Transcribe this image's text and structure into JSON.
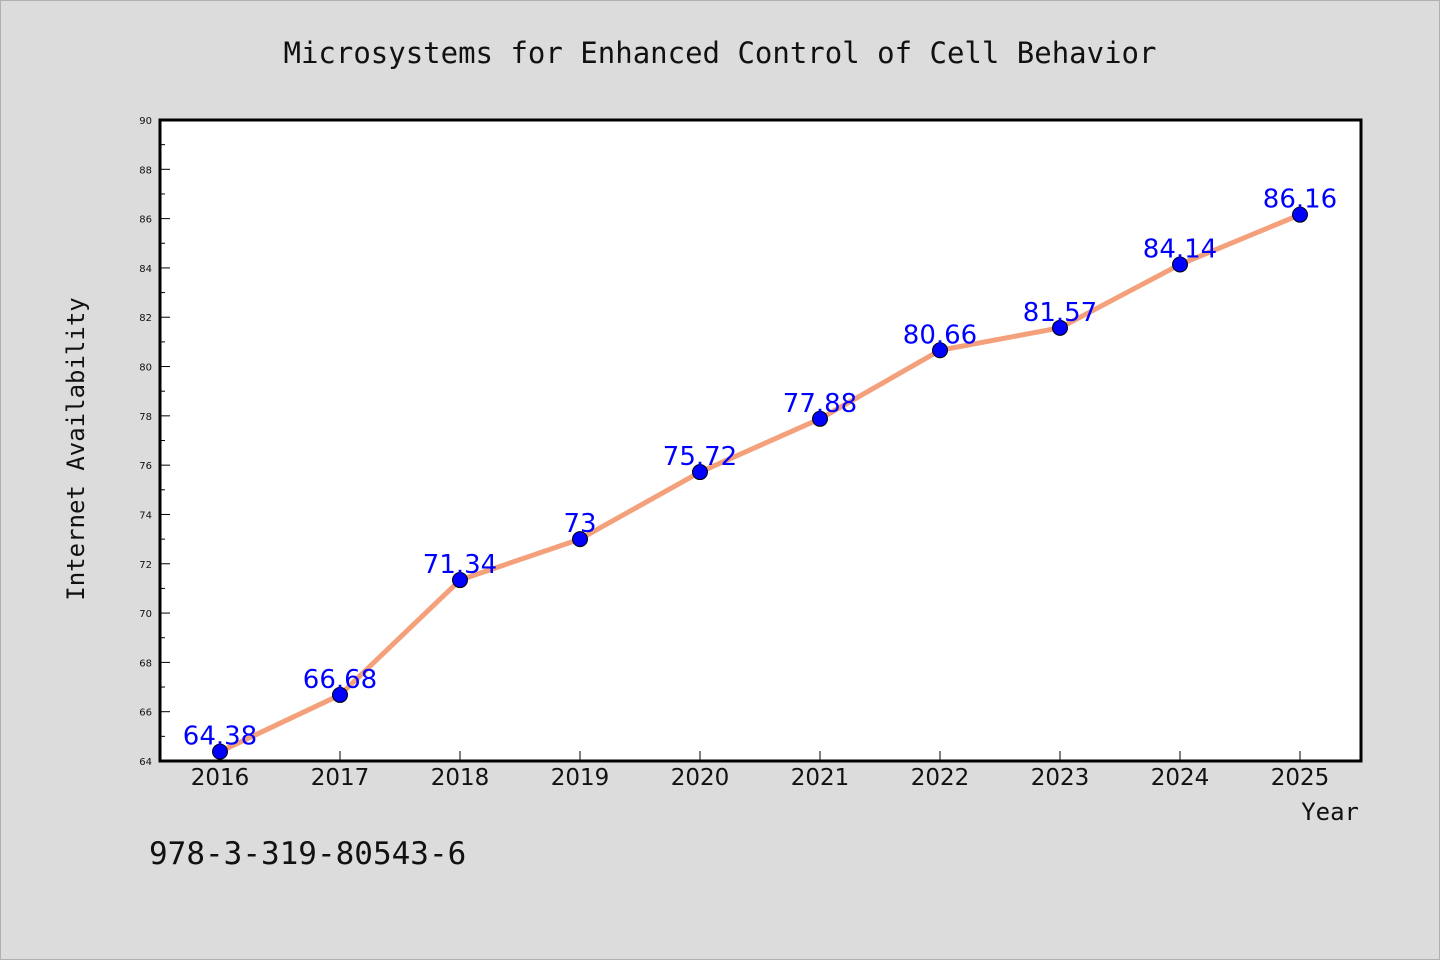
{
  "chart_data": {
    "type": "line",
    "title": "Microsystems for Enhanced Control of Cell Behavior",
    "xlabel": "Year",
    "ylabel": "Internet Availability",
    "categories": [
      "2016",
      "2017",
      "2018",
      "2019",
      "2020",
      "2021",
      "2022",
      "2023",
      "2024",
      "2025"
    ],
    "values": [
      64.38,
      66.68,
      71.34,
      73,
      75.72,
      77.88,
      80.66,
      81.57,
      84.14,
      86.16
    ],
    "data_labels": [
      "64.38",
      "66.68",
      "71.34",
      "73",
      "75.72",
      "77.88",
      "80.66",
      "81.57",
      "84.14",
      "86.16"
    ],
    "ylim": [
      64,
      90
    ],
    "yticks": [
      64,
      66,
      68,
      70,
      72,
      74,
      76,
      78,
      80,
      82,
      84,
      86,
      88,
      90
    ],
    "grid": false,
    "line_color": "#f4a07a",
    "marker_color": "#0000ff",
    "label_color": "#0000ff"
  },
  "footer_text": "978-3-319-80543-6"
}
